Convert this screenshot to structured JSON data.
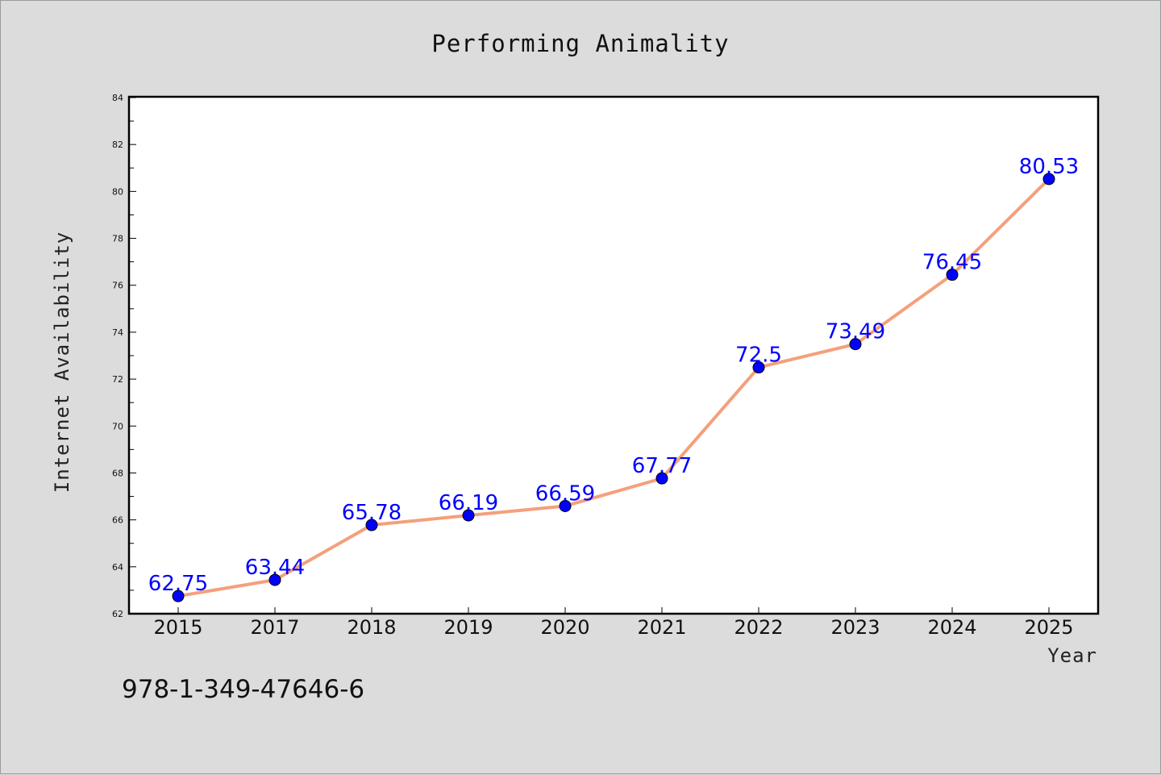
{
  "chart_data": {
    "type": "line",
    "title": "Performing Animality",
    "xlabel": "Year",
    "ylabel": "Internet Availability",
    "categories": [
      "2015",
      "2017",
      "2018",
      "2019",
      "2020",
      "2021",
      "2022",
      "2023",
      "2024",
      "2025"
    ],
    "series": [
      {
        "values": [
          62.75,
          63.44,
          65.78,
          66.19,
          66.59,
          67.77,
          72.5,
          73.49,
          76.45,
          80.53
        ],
        "labels": [
          "62.75",
          "63.44",
          "65.78",
          "66.19",
          "66.59",
          "67.77",
          "72.5",
          "73.49",
          "76.45",
          "80.53"
        ],
        "line_color": "#f4a07c",
        "marker_color": "#0000ff"
      }
    ],
    "ylim": [
      62,
      84
    ],
    "yticks": [
      "62",
      "64",
      "66",
      "68",
      "70",
      "72",
      "74",
      "76",
      "78",
      "80",
      "82",
      "84"
    ],
    "grid": false,
    "legend": "none"
  },
  "annotation": "978-1-349-47646-6",
  "colors": {
    "background": "#dcdcdc",
    "plot_area": "#ffffff",
    "line": "#f4a07c",
    "marker": "#0000ff",
    "data_label": "#0000ff"
  }
}
